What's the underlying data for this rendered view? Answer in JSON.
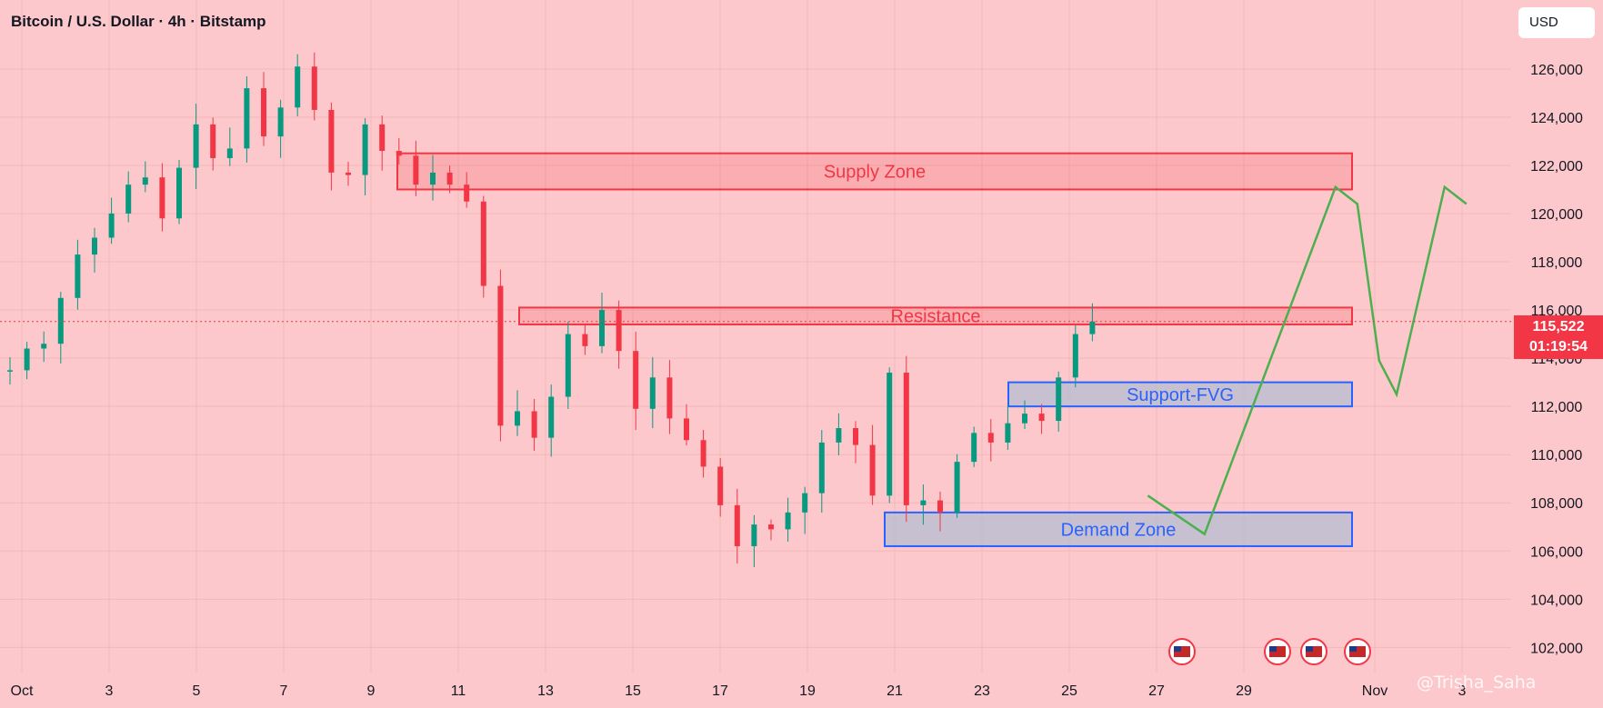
{
  "header": {
    "title": "Bitcoin / U.S. Dollar · 4h · Bitstamp",
    "currency": "USD"
  },
  "price_label": {
    "price": "115,522",
    "countdown": "01:19:54"
  },
  "watermark": "@Trisha_Saha",
  "colors": {
    "background": "#fcc8cb",
    "bull": "#089981",
    "bear": "#f23645",
    "zone_red": "#f23645",
    "zone_blue": "#2962ff",
    "projection": "#4caf50"
  },
  "chart_data": {
    "type": "candlestick",
    "x_tick_labels": [
      "Oct",
      "3",
      "5",
      "7",
      "9",
      "11",
      "13",
      "15",
      "17",
      "19",
      "21",
      "23",
      "25",
      "27",
      "29",
      "Nov",
      "3"
    ],
    "y_tick_labels": [
      "102,000",
      "104,000",
      "106,000",
      "108,000",
      "110,000",
      "112,000",
      "114,000",
      "116,000",
      "118,000",
      "120,000",
      "122,000",
      "124,000",
      "126,000"
    ],
    "ylim": [
      101000,
      129500
    ],
    "current_price": 115522,
    "close_path": [
      [
        1,
        113500
      ],
      [
        2,
        114400
      ],
      [
        3,
        114600
      ],
      [
        4,
        116500
      ],
      [
        5,
        118300
      ],
      [
        6,
        119000
      ],
      [
        7,
        120000
      ],
      [
        8,
        121200
      ],
      [
        9,
        121500
      ],
      [
        10,
        119800
      ],
      [
        11,
        121900
      ],
      [
        12,
        123700
      ],
      [
        13,
        122300
      ],
      [
        14,
        122700
      ],
      [
        15,
        125200
      ],
      [
        16,
        123200
      ],
      [
        17,
        124400
      ],
      [
        18,
        126100
      ],
      [
        19,
        124300
      ],
      [
        20,
        121700
      ],
      [
        21,
        121600
      ],
      [
        22,
        123700
      ],
      [
        23,
        122600
      ],
      [
        24,
        122400
      ],
      [
        25,
        121200
      ],
      [
        26,
        121700
      ],
      [
        27,
        121200
      ],
      [
        28,
        120500
      ],
      [
        29,
        117000
      ],
      [
        30,
        111200
      ],
      [
        31,
        111800
      ],
      [
        32,
        110700
      ],
      [
        33,
        112400
      ],
      [
        34,
        115000
      ],
      [
        35,
        114500
      ],
      [
        36,
        116000
      ],
      [
        37,
        114300
      ],
      [
        38,
        111900
      ],
      [
        39,
        113200
      ],
      [
        40,
        111500
      ],
      [
        41,
        110600
      ],
      [
        42,
        109500
      ],
      [
        43,
        107900
      ],
      [
        44,
        106200
      ],
      [
        45,
        107100
      ],
      [
        46,
        106900
      ],
      [
        47,
        107600
      ],
      [
        48,
        108400
      ],
      [
        49,
        110500
      ],
      [
        50,
        111100
      ],
      [
        51,
        110400
      ],
      [
        52,
        108300
      ],
      [
        53,
        113400
      ],
      [
        54,
        107900
      ],
      [
        55,
        108100
      ],
      [
        56,
        107600
      ],
      [
        57,
        109700
      ],
      [
        58,
        110900
      ],
      [
        59,
        110500
      ],
      [
        60,
        111300
      ],
      [
        61,
        111700
      ],
      [
        62,
        111400
      ],
      [
        63,
        113200
      ],
      [
        64,
        115000
      ],
      [
        65,
        115522
      ]
    ],
    "zones": [
      {
        "label": "Supply Zone",
        "y_low": 121000,
        "y_high": 122500,
        "color": "red"
      },
      {
        "label": "Resistance",
        "y_low": 115400,
        "y_high": 116100,
        "color": "red"
      },
      {
        "label": "Support-FVG",
        "y_low": 112000,
        "y_high": 113000,
        "color": "blue"
      },
      {
        "label": "Demand Zone",
        "y_low": 106200,
        "y_high": 107600,
        "color": "blue"
      }
    ],
    "projection_path": [
      [
        26.8,
        108300
      ],
      [
        28.1,
        106700
      ],
      [
        31.1,
        121100
      ],
      [
        31.6,
        120400
      ],
      [
        32.1,
        113900
      ],
      [
        32.5,
        112500
      ],
      [
        33.6,
        121100
      ],
      [
        34.1,
        120400
      ]
    ]
  }
}
